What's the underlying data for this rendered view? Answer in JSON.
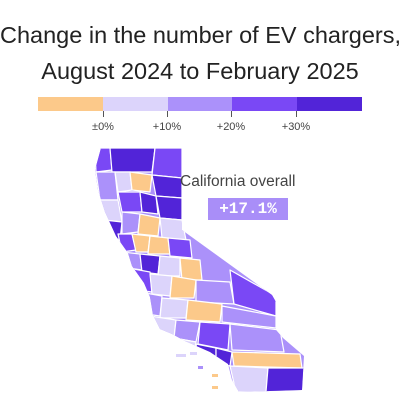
{
  "title": {
    "line1": "Change in the number of EV chargers,",
    "line2": "August 2024 to February 2025"
  },
  "legend": {
    "bins": [
      {
        "label": "",
        "color": "#fcc98a"
      },
      {
        "label": "±0%",
        "color": "#dcd4fb"
      },
      {
        "label": "+10%",
        "color": "#ab91fa"
      },
      {
        "label": "+20%",
        "color": "#7a48f5"
      },
      {
        "label": "+30%",
        "color": "#5224d8"
      }
    ],
    "tick_labels": [
      "±0%",
      "+10%",
      "+20%",
      "+30%"
    ]
  },
  "callout": {
    "label": "California overall",
    "value": "+17.1%",
    "color": "#a98ef8"
  },
  "map": {
    "region": "California counties",
    "colors": {
      "decline": "#fcc98a",
      "0_to_10": "#dcd4fb",
      "10_to_20": "#ab91fa",
      "20_to_30": "#7a48f5",
      "30_plus": "#5224d8"
    }
  }
}
